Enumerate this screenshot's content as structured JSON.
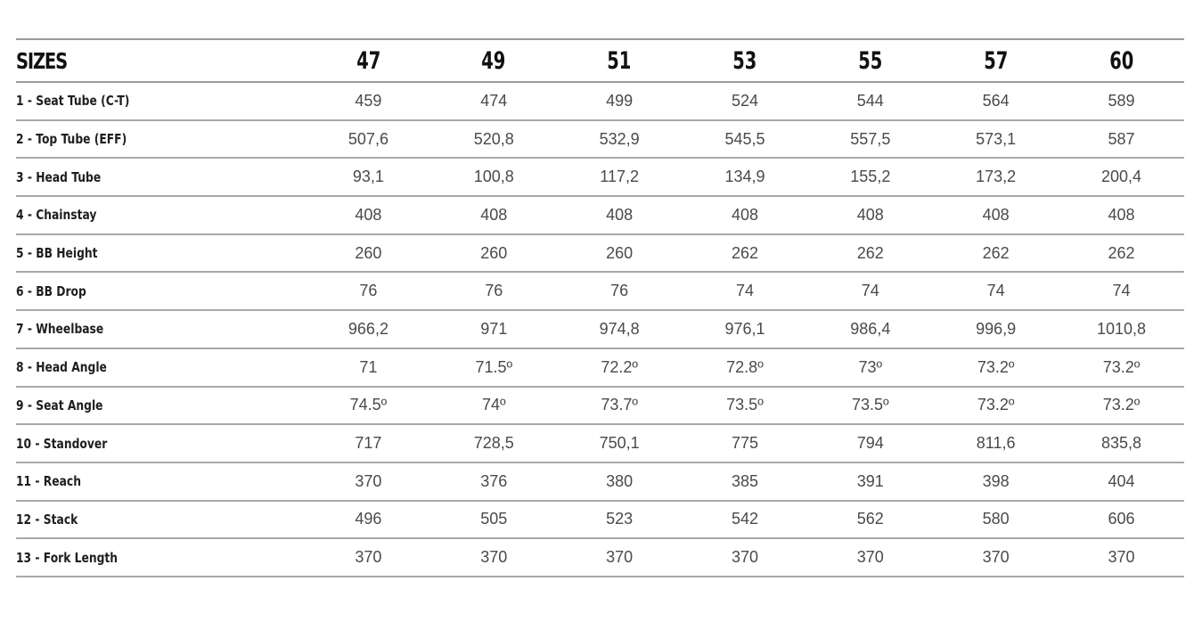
{
  "table": {
    "header_label": "SIZES",
    "sizes": [
      "47",
      "49",
      "51",
      "53",
      "55",
      "57",
      "60"
    ],
    "rows": [
      {
        "label": "1 - Seat Tube (C-T)",
        "values": [
          "459",
          "474",
          "499",
          "524",
          "544",
          "564",
          "589"
        ]
      },
      {
        "label": "2 - Top Tube (EFF)",
        "values": [
          "507,6",
          "520,8",
          "532,9",
          "545,5",
          "557,5",
          "573,1",
          "587"
        ]
      },
      {
        "label": "3 - Head Tube",
        "values": [
          "93,1",
          "100,8",
          "117,2",
          "134,9",
          "155,2",
          "173,2",
          "200,4"
        ]
      },
      {
        "label": "4 - Chainstay",
        "values": [
          "408",
          "408",
          "408",
          "408",
          "408",
          "408",
          "408"
        ]
      },
      {
        "label": "5 - BB Height",
        "values": [
          "260",
          "260",
          "260",
          "262",
          "262",
          "262",
          "262"
        ]
      },
      {
        "label": "6 - BB Drop",
        "values": [
          "76",
          "76",
          "76",
          "74",
          "74",
          "74",
          "74"
        ]
      },
      {
        "label": "7 - Wheelbase",
        "values": [
          "966,2",
          "971",
          "974,8",
          "976,1",
          "986,4",
          "996,9",
          "1010,8"
        ]
      },
      {
        "label": "8 - Head Angle",
        "values": [
          "71",
          "71.5º",
          "72.2º",
          "72.8º",
          "73º",
          "73.2º",
          "73.2º"
        ]
      },
      {
        "label": "9 - Seat Angle",
        "values": [
          "74.5º",
          "74º",
          "73.7º",
          "73.5º",
          "73.5º",
          "73.2º",
          "73.2º"
        ]
      },
      {
        "label": "10 - Standover",
        "values": [
          "717",
          "728,5",
          "750,1",
          "775",
          "794",
          "811,6",
          "835,8"
        ]
      },
      {
        "label": "11 - Reach",
        "values": [
          "370",
          "376",
          "380",
          "385",
          "391",
          "398",
          "404"
        ]
      },
      {
        "label": "12 - Stack",
        "values": [
          "496",
          "505",
          "523",
          "542",
          "562",
          "580",
          "606"
        ]
      },
      {
        "label": "13 - Fork Length",
        "values": [
          "370",
          "370",
          "370",
          "370",
          "370",
          "370",
          "370"
        ]
      }
    ]
  }
}
